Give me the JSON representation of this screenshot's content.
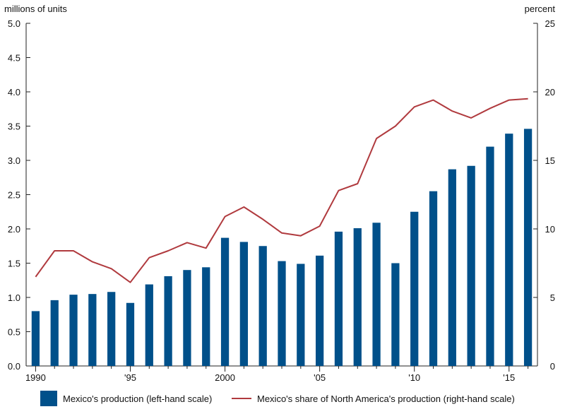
{
  "chart_data": {
    "type": "bar",
    "left_axis_title": "millions of units",
    "right_axis_title": "percent",
    "left_ylim": [
      0,
      5
    ],
    "left_ticks": [
      "0.0",
      "0.5",
      "1.0",
      "1.5",
      "2.0",
      "2.5",
      "3.0",
      "3.5",
      "4.0",
      "4.5",
      "5.0"
    ],
    "right_ylim": [
      0,
      25
    ],
    "right_ticks": [
      "0",
      "5",
      "10",
      "15",
      "20",
      "25"
    ],
    "x_tick_labels": [
      {
        "year": 1990,
        "label": "1990"
      },
      {
        "year": 1995,
        "label": "'95"
      },
      {
        "year": 2000,
        "label": "2000"
      },
      {
        "year": 2005,
        "label": "'05"
      },
      {
        "year": 2010,
        "label": "'10"
      },
      {
        "year": 2015,
        "label": "'15"
      }
    ],
    "years": [
      1990,
      1991,
      1992,
      1993,
      1994,
      1995,
      1996,
      1997,
      1998,
      1999,
      2000,
      2001,
      2002,
      2003,
      2004,
      2005,
      2006,
      2007,
      2008,
      2009,
      2010,
      2011,
      2012,
      2013,
      2014,
      2015,
      2016
    ],
    "series": [
      {
        "name": "Mexico's production (left-hand scale)",
        "type": "bar",
        "axis": "left",
        "color": "#00508a",
        "values": [
          0.8,
          0.96,
          1.04,
          1.05,
          1.08,
          0.92,
          1.19,
          1.31,
          1.4,
          1.44,
          1.87,
          1.81,
          1.75,
          1.53,
          1.49,
          1.61,
          1.96,
          2.01,
          2.09,
          1.5,
          2.25,
          2.55,
          2.87,
          2.92,
          3.2,
          3.39,
          3.46
        ]
      },
      {
        "name": "Mexico's share of North America's production (right-hand scale)",
        "type": "line",
        "axis": "right",
        "color": "#b03a3e",
        "values": [
          6.5,
          8.4,
          8.4,
          7.6,
          7.1,
          6.1,
          7.9,
          8.4,
          9.0,
          8.6,
          10.9,
          11.6,
          10.7,
          9.7,
          9.5,
          10.2,
          12.8,
          13.3,
          16.6,
          17.5,
          18.9,
          19.4,
          18.6,
          18.1,
          18.8,
          19.4,
          19.5
        ]
      }
    ]
  }
}
